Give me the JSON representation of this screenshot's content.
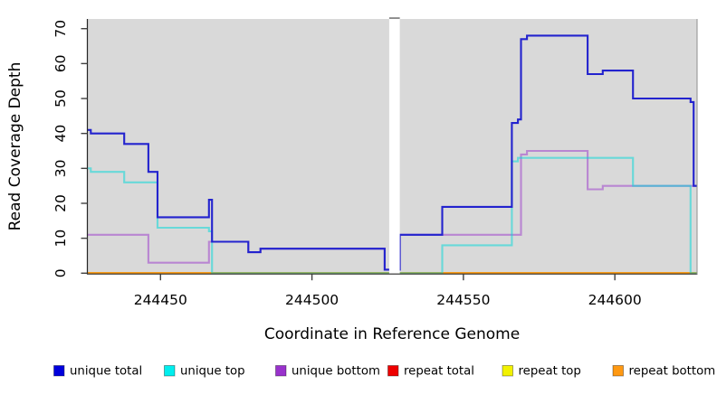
{
  "figure": {
    "x_axis_title": "Coordinate in Reference Genome",
    "y_axis_title": "Read Coverage Depth"
  },
  "chart_data": {
    "type": "line",
    "subtype": "step",
    "title": "",
    "xlabel": "Coordinate in Reference Genome",
    "ylabel": "Read Coverage Depth",
    "panel_background": "#d9d9d9",
    "x_ticks": [
      244450,
      244500,
      244550,
      244600
    ],
    "y_ticks": [
      0,
      10,
      20,
      30,
      40,
      50,
      60,
      70
    ],
    "x_range": [
      244425.7,
      244627.1
    ],
    "y_range": [
      0,
      72.8
    ],
    "x_end": 244627.1,
    "gap": {
      "x_start": 244525.5,
      "x_end": 244529.0
    },
    "grid": "off",
    "legend_position": "bottom",
    "series": [
      {
        "name": "repeat total",
        "color": "#D40000",
        "opacity": 1,
        "points": [
          [
            244425.7,
            0
          ]
        ]
      },
      {
        "name": "repeat top",
        "color": "#EDED00",
        "opacity": 1,
        "points": [
          [
            244425.7,
            0
          ]
        ]
      },
      {
        "name": "repeat bottom",
        "color": "#FF9912",
        "opacity": 1,
        "points": [
          [
            244425.7,
            0
          ]
        ]
      },
      {
        "name": "unique bottom",
        "color": "#9933CB",
        "opacity": 0.5,
        "points": [
          [
            244425.7,
            11
          ],
          [
            244446,
            3
          ],
          [
            244466,
            9
          ],
          [
            244479,
            6
          ],
          [
            244483,
            7
          ],
          [
            244524,
            1
          ],
          [
            244529,
            11
          ],
          [
            244569,
            34
          ],
          [
            244571,
            35
          ],
          [
            244591,
            24
          ],
          [
            244596,
            25
          ]
        ]
      },
      {
        "name": "unique top",
        "color": "#00D9D9",
        "opacity": 0.52,
        "points": [
          [
            244425.7,
            30
          ],
          [
            244427,
            29
          ],
          [
            244438,
            26
          ],
          [
            244449,
            13
          ],
          [
            244466,
            12
          ],
          [
            244467,
            0
          ],
          [
            244543,
            8
          ],
          [
            244566,
            32
          ],
          [
            244568,
            33
          ],
          [
            244606,
            25
          ],
          [
            244625,
            0
          ]
        ]
      },
      {
        "name": "unique total",
        "color": "#2323CE",
        "opacity": 1,
        "points": [
          [
            244425.7,
            41
          ],
          [
            244427,
            40
          ],
          [
            244438,
            37
          ],
          [
            244446,
            29
          ],
          [
            244449,
            16
          ],
          [
            244466,
            21
          ],
          [
            244467,
            9
          ],
          [
            244479,
            6
          ],
          [
            244483,
            7
          ],
          [
            244524,
            1
          ],
          [
            244529,
            11
          ],
          [
            244543,
            19
          ],
          [
            244566,
            43
          ],
          [
            244568,
            44
          ],
          [
            244569,
            67
          ],
          [
            244571,
            68
          ],
          [
            244591,
            57
          ],
          [
            244596,
            58
          ],
          [
            244606,
            50
          ],
          [
            244625,
            49
          ],
          [
            244626,
            25
          ]
        ]
      }
    ],
    "legend": [
      {
        "label": "unique total",
        "color": "#0000DC"
      },
      {
        "label": "unique top",
        "color": "#00EEEE"
      },
      {
        "label": "unique bottom",
        "color": "#9932CC"
      },
      {
        "label": "repeat total",
        "color": "#EE0000"
      },
      {
        "label": "repeat top",
        "color": "#F2F200"
      },
      {
        "label": "repeat bottom",
        "color": "#FF9912"
      }
    ]
  }
}
